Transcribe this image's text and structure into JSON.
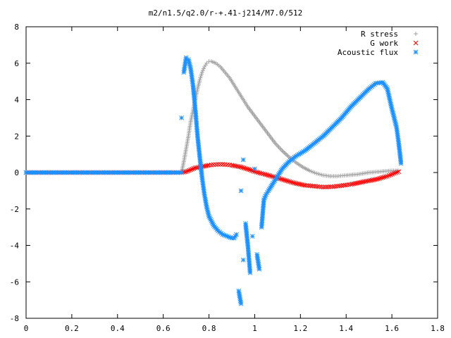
{
  "chart_data": {
    "type": "scatter",
    "title": "m2/n1.5/q2.0/r-+.41-j214/M7.0/512",
    "xlabel": "",
    "ylabel": "",
    "xlim": [
      0,
      1.8
    ],
    "ylim": [
      -8,
      8
    ],
    "x_ticks": [
      "0",
      "0.2",
      "0.4",
      "0.6",
      "0.8",
      "1",
      "1.2",
      "1.4",
      "1.6",
      "1.8"
    ],
    "y_ticks": [
      "8",
      "6",
      "4",
      "2",
      "0",
      "-2",
      "-4",
      "-6",
      "-8"
    ],
    "grid": false,
    "legend_position": "top-right",
    "series": [
      {
        "name": "R stress",
        "marker": "plus",
        "color": "#a0a0a0",
        "points": [
          [
            0.0,
            0
          ],
          [
            0.05,
            0
          ],
          [
            0.1,
            0
          ],
          [
            0.15,
            0
          ],
          [
            0.2,
            0
          ],
          [
            0.25,
            0
          ],
          [
            0.3,
            0
          ],
          [
            0.35,
            0
          ],
          [
            0.4,
            0
          ],
          [
            0.45,
            0
          ],
          [
            0.5,
            0
          ],
          [
            0.55,
            0
          ],
          [
            0.6,
            0
          ],
          [
            0.65,
            0
          ],
          [
            0.68,
            0
          ],
          [
            0.69,
            0.6
          ],
          [
            0.7,
            1.3
          ],
          [
            0.71,
            2.0
          ],
          [
            0.72,
            2.8
          ],
          [
            0.73,
            3.4
          ],
          [
            0.74,
            4.0
          ],
          [
            0.75,
            4.6
          ],
          [
            0.76,
            5.1
          ],
          [
            0.77,
            5.5
          ],
          [
            0.78,
            5.8
          ],
          [
            0.79,
            6.0
          ],
          [
            0.8,
            6.1
          ],
          [
            0.81,
            6.1
          ],
          [
            0.83,
            6.0
          ],
          [
            0.85,
            5.8
          ],
          [
            0.87,
            5.5
          ],
          [
            0.89,
            5.2
          ],
          [
            0.91,
            4.8
          ],
          [
            0.93,
            4.4
          ],
          [
            0.95,
            4.0
          ],
          [
            0.97,
            3.6
          ],
          [
            1.0,
            3.1
          ],
          [
            1.03,
            2.6
          ],
          [
            1.06,
            2.1
          ],
          [
            1.09,
            1.6
          ],
          [
            1.12,
            1.2
          ],
          [
            1.15,
            0.85
          ],
          [
            1.18,
            0.55
          ],
          [
            1.21,
            0.3
          ],
          [
            1.24,
            0.1
          ],
          [
            1.27,
            -0.05
          ],
          [
            1.3,
            -0.15
          ],
          [
            1.33,
            -0.2
          ],
          [
            1.36,
            -0.2
          ],
          [
            1.4,
            -0.15
          ],
          [
            1.45,
            -0.1
          ],
          [
            1.5,
            0
          ],
          [
            1.55,
            0.05
          ],
          [
            1.6,
            0.1
          ],
          [
            1.63,
            0.1
          ]
        ]
      },
      {
        "name": "G work",
        "marker": "cross",
        "color": "#ff0000",
        "points": [
          [
            0.0,
            0
          ],
          [
            0.05,
            0
          ],
          [
            0.1,
            0
          ],
          [
            0.15,
            0
          ],
          [
            0.2,
            0
          ],
          [
            0.25,
            0
          ],
          [
            0.3,
            0
          ],
          [
            0.35,
            0
          ],
          [
            0.4,
            0
          ],
          [
            0.45,
            0
          ],
          [
            0.5,
            0
          ],
          [
            0.55,
            0
          ],
          [
            0.6,
            0
          ],
          [
            0.65,
            0
          ],
          [
            0.68,
            0
          ],
          [
            0.7,
            0.05
          ],
          [
            0.72,
            0.15
          ],
          [
            0.74,
            0.25
          ],
          [
            0.76,
            0.3
          ],
          [
            0.78,
            0.35
          ],
          [
            0.8,
            0.4
          ],
          [
            0.82,
            0.43
          ],
          [
            0.84,
            0.45
          ],
          [
            0.86,
            0.45
          ],
          [
            0.88,
            0.43
          ],
          [
            0.9,
            0.4
          ],
          [
            0.92,
            0.35
          ],
          [
            0.94,
            0.3
          ],
          [
            0.96,
            0.22
          ],
          [
            0.98,
            0.15
          ],
          [
            1.0,
            0.05
          ],
          [
            1.03,
            -0.05
          ],
          [
            1.06,
            -0.15
          ],
          [
            1.1,
            -0.3
          ],
          [
            1.14,
            -0.45
          ],
          [
            1.18,
            -0.6
          ],
          [
            1.22,
            -0.7
          ],
          [
            1.26,
            -0.75
          ],
          [
            1.3,
            -0.8
          ],
          [
            1.34,
            -0.78
          ],
          [
            1.38,
            -0.72
          ],
          [
            1.42,
            -0.65
          ],
          [
            1.46,
            -0.55
          ],
          [
            1.5,
            -0.45
          ],
          [
            1.54,
            -0.35
          ],
          [
            1.58,
            -0.2
          ],
          [
            1.61,
            -0.05
          ],
          [
            1.63,
            0.05
          ]
        ]
      },
      {
        "name": "Acoustic flux",
        "marker": "star",
        "color": "#1e90ff",
        "points": [
          [
            0.0,
            0
          ],
          [
            0.05,
            0
          ],
          [
            0.1,
            0
          ],
          [
            0.15,
            0
          ],
          [
            0.2,
            0
          ],
          [
            0.25,
            0
          ],
          [
            0.3,
            0
          ],
          [
            0.35,
            0
          ],
          [
            0.4,
            0
          ],
          [
            0.45,
            0
          ],
          [
            0.5,
            0
          ],
          [
            0.55,
            0
          ],
          [
            0.6,
            0
          ],
          [
            0.65,
            0
          ],
          [
            0.68,
            0
          ],
          [
            0.68,
            3.0
          ],
          [
            0.69,
            5.5
          ],
          [
            0.7,
            6.3
          ],
          [
            0.71,
            6.2
          ],
          [
            0.72,
            5.7
          ],
          [
            0.73,
            4.8
          ],
          [
            0.74,
            3.5
          ],
          [
            0.75,
            2.0
          ],
          [
            0.76,
            0.8
          ],
          [
            0.77,
            -0.3
          ],
          [
            0.78,
            -1.2
          ],
          [
            0.79,
            -1.9
          ],
          [
            0.8,
            -2.4
          ],
          [
            0.82,
            -2.9
          ],
          [
            0.84,
            -3.2
          ],
          [
            0.86,
            -3.4
          ],
          [
            0.88,
            -3.5
          ],
          [
            0.9,
            -3.6
          ],
          [
            0.91,
            -3.6
          ],
          [
            0.92,
            -3.4
          ],
          [
            0.94,
            -1.0
          ],
          [
            0.95,
            0.7
          ],
          [
            0.93,
            -6.5
          ],
          [
            0.94,
            -7.2
          ],
          [
            0.95,
            -4.8
          ],
          [
            0.96,
            -2.8
          ],
          [
            0.97,
            -4.0
          ],
          [
            0.98,
            -5.5
          ],
          [
            0.99,
            -3.5
          ],
          [
            1.0,
            0.2
          ],
          [
            1.01,
            -4.5
          ],
          [
            1.02,
            -5.3
          ],
          [
            1.03,
            -3.0
          ],
          [
            1.04,
            -1.5
          ],
          [
            1.05,
            -1.2
          ],
          [
            1.06,
            -1.0
          ],
          [
            1.08,
            -0.6
          ],
          [
            1.1,
            -0.2
          ],
          [
            1.12,
            0.2
          ],
          [
            1.15,
            0.6
          ],
          [
            1.18,
            0.9
          ],
          [
            1.22,
            1.2
          ],
          [
            1.26,
            1.6
          ],
          [
            1.3,
            2.0
          ],
          [
            1.34,
            2.5
          ],
          [
            1.38,
            3.0
          ],
          [
            1.42,
            3.6
          ],
          [
            1.46,
            4.1
          ],
          [
            1.5,
            4.6
          ],
          [
            1.53,
            4.9
          ],
          [
            1.56,
            4.95
          ],
          [
            1.58,
            4.6
          ],
          [
            1.6,
            3.5
          ],
          [
            1.62,
            2.5
          ],
          [
            1.63,
            1.6
          ],
          [
            1.64,
            0.5
          ]
        ]
      }
    ]
  }
}
